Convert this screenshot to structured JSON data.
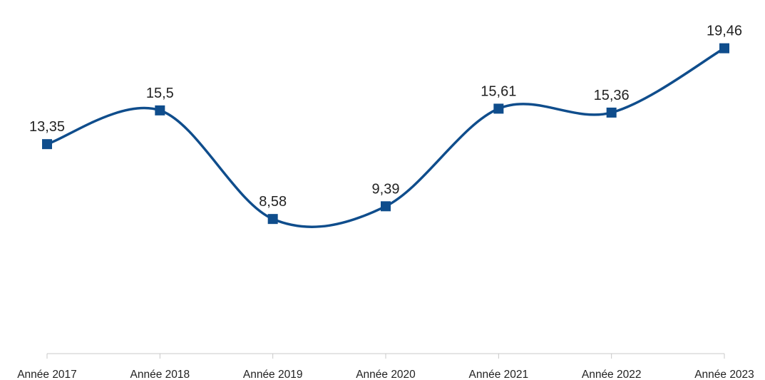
{
  "chart_data": {
    "type": "line",
    "categories": [
      "Année 2017",
      "Année 2018",
      "Année 2019",
      "Année 2020",
      "Année 2021",
      "Année 2022",
      "Année 2023"
    ],
    "series": [
      {
        "values": [
          13.35,
          15.5,
          8.58,
          9.39,
          15.61,
          15.36,
          19.46
        ]
      }
    ],
    "data_labels": [
      "13,35",
      "15,5",
      "8,58",
      "9,39",
      "15,61",
      "15,36",
      "19,46"
    ],
    "title": "",
    "xlabel": "",
    "ylabel": "",
    "ylim": [
      0,
      21.5
    ],
    "grid": false,
    "legend": "none",
    "smooth": true,
    "marker": "square",
    "colors": {
      "line": "#0f4d8c",
      "marker": "#0f4d8c",
      "axis": "#c8c8c8"
    }
  }
}
